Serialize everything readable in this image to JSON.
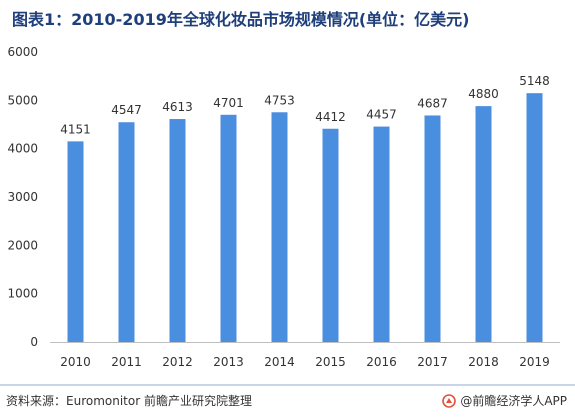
{
  "title": "图表1：2010-2019年全球化妆品市场规模情况(单位：亿美元)",
  "chart_data": {
    "type": "bar",
    "categories": [
      "2010",
      "2011",
      "2012",
      "2013",
      "2014",
      "2015",
      "2016",
      "2017",
      "2018",
      "2019"
    ],
    "values": [
      4151,
      4547,
      4613,
      4701,
      4753,
      4412,
      4457,
      4687,
      4880,
      5148
    ],
    "ylim": [
      0,
      6000
    ],
    "yticks": [
      0,
      1000,
      2000,
      3000,
      4000,
      5000,
      6000
    ],
    "bar_color": "#4a8ee0",
    "grid": false,
    "legend": "none"
  },
  "footer": {
    "source": "资料来源：Euromonitor 前瞻产业研究院整理",
    "brand": "@前瞻经济学人APP",
    "brand_icon": "qianzhan-logo-icon"
  }
}
